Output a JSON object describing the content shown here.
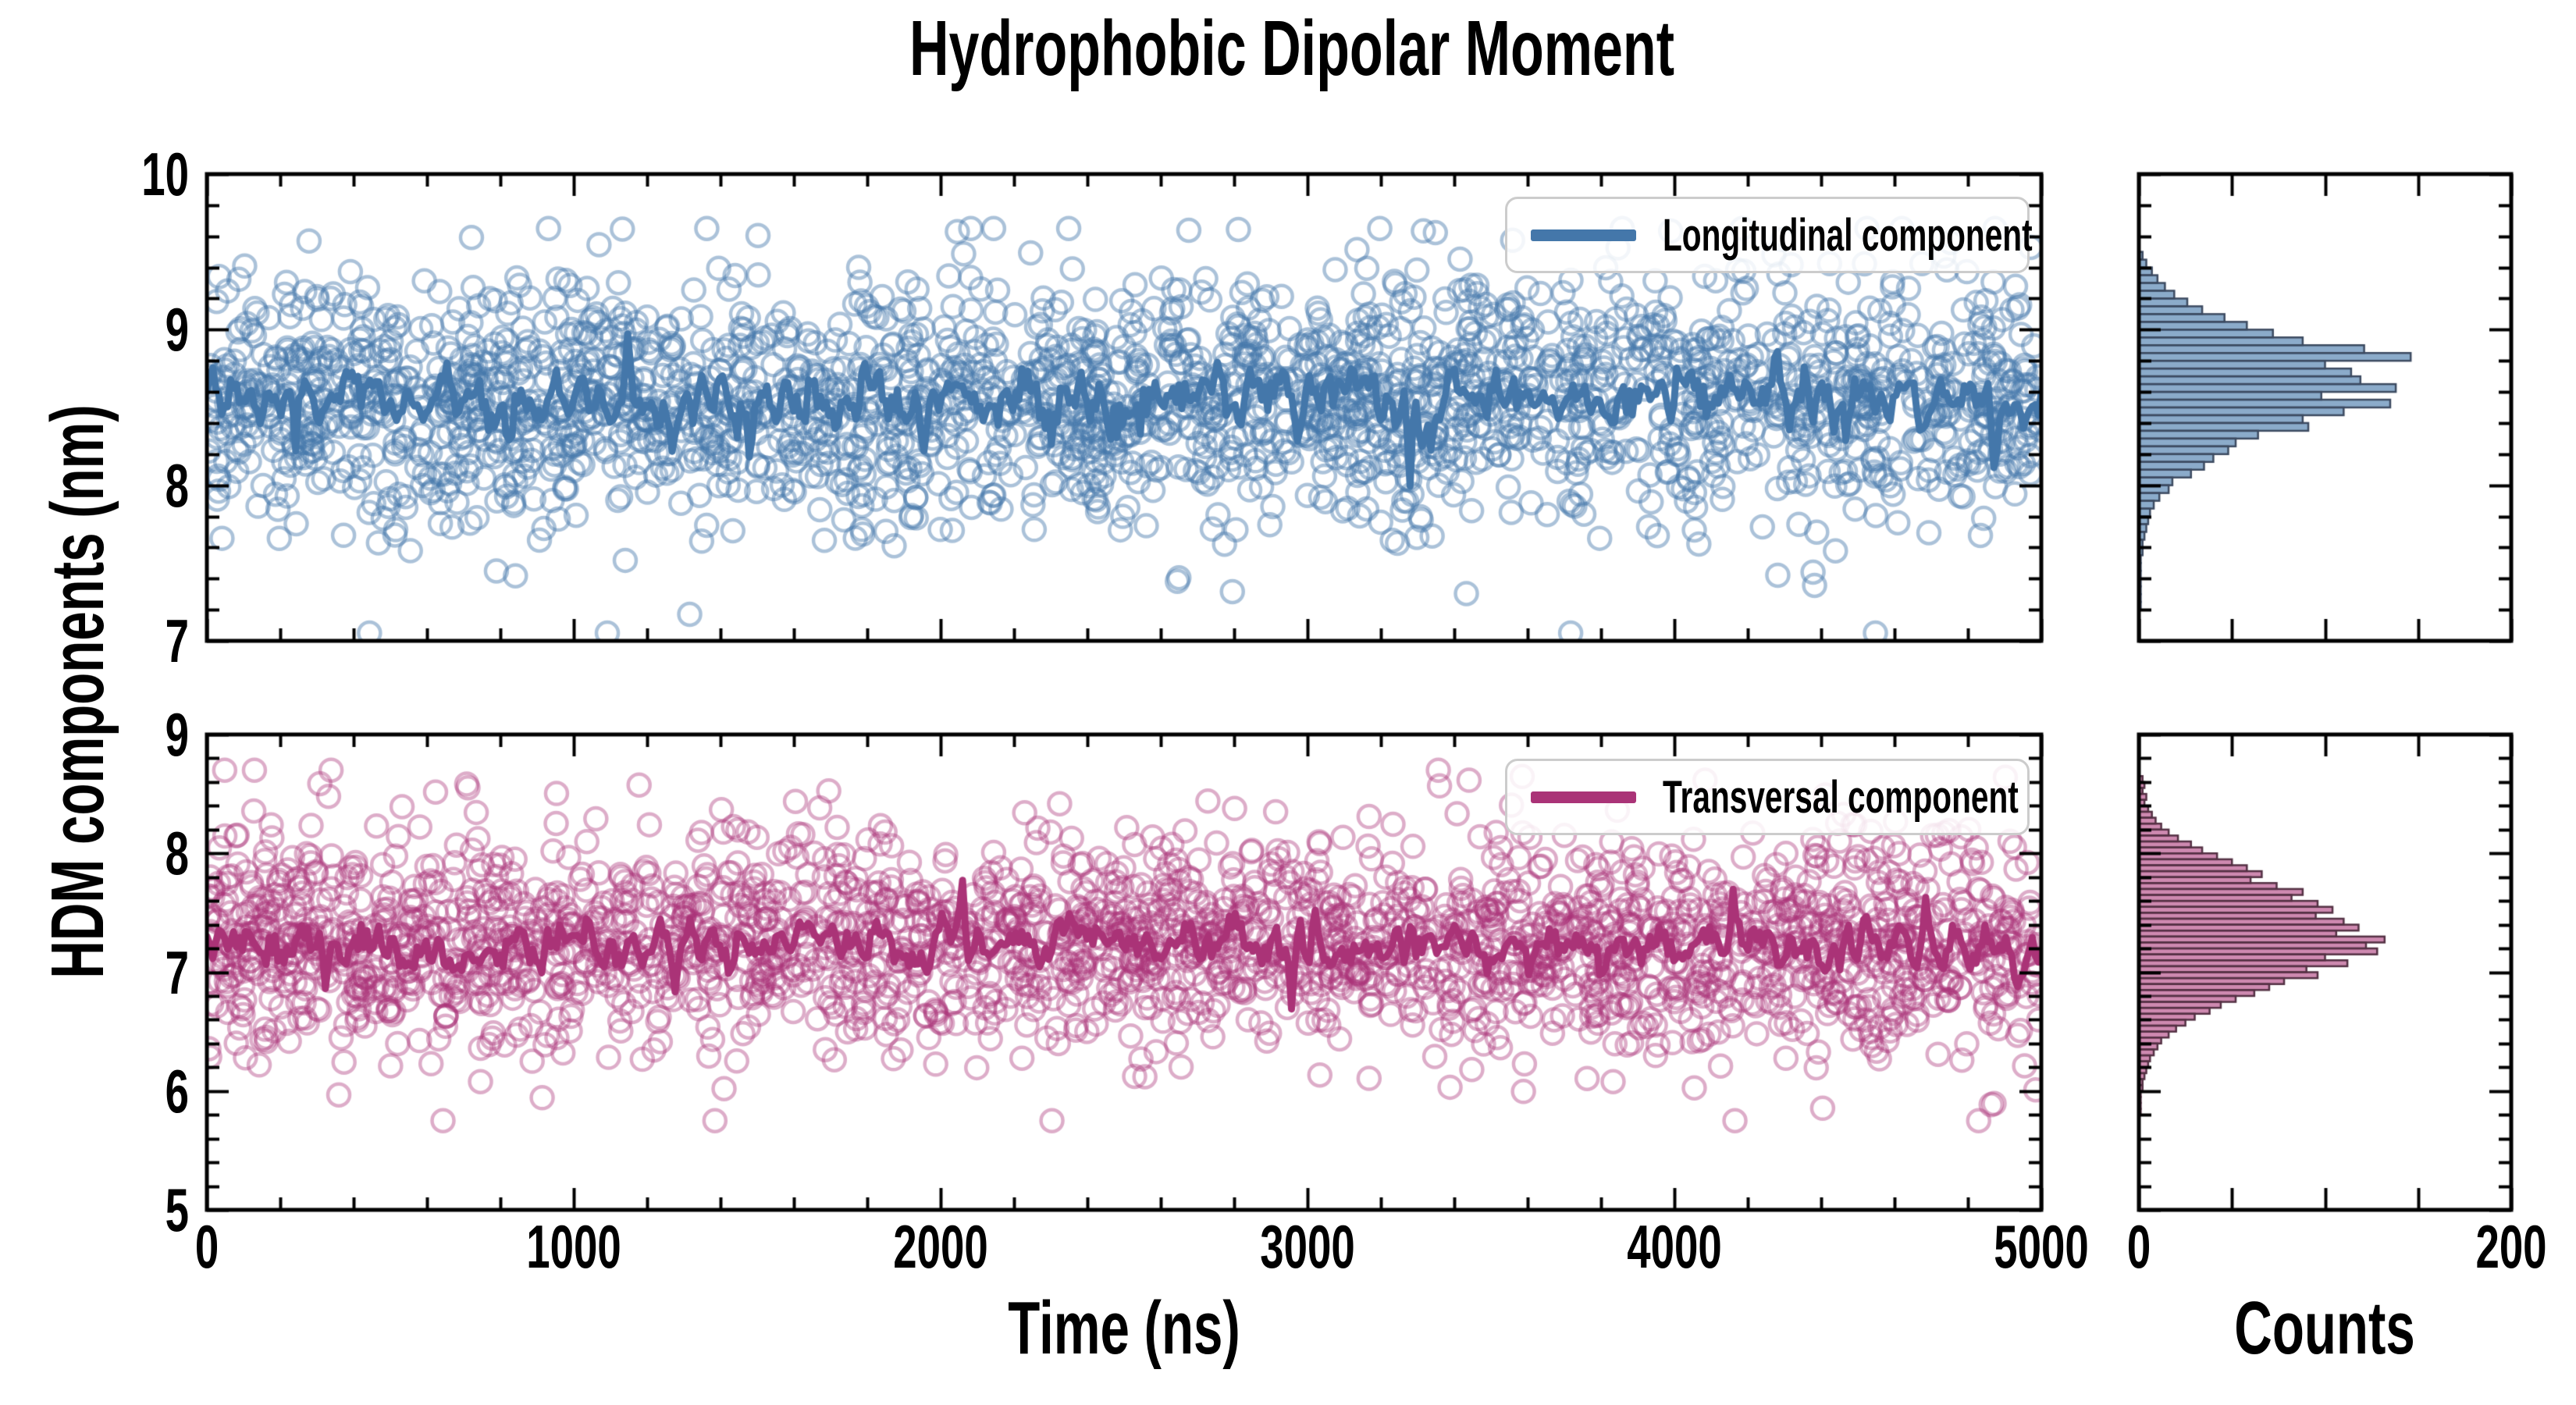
{
  "chart_data": {
    "type": "scatter+line+histogram",
    "title": "Hydrophobic Dipolar Moment",
    "y_label": "HDM components (nm)",
    "x_label_time": "Time (ns)",
    "x_label_counts": "Counts",
    "time_axis": {
      "min": 0,
      "max": 5000,
      "major_step": 1000,
      "minor_step": 200,
      "ticks": [
        {
          "v": 0,
          "label": "0"
        },
        {
          "v": 1000,
          "label": "1000"
        },
        {
          "v": 2000,
          "label": "2000"
        },
        {
          "v": 3000,
          "label": "3000"
        },
        {
          "v": 4000,
          "label": "4000"
        },
        {
          "v": 5000,
          "label": "5000"
        }
      ]
    },
    "counts_axis": {
      "min": 0,
      "max": 200,
      "major_step": 50,
      "ticks": [
        {
          "v": 0,
          "label": "0"
        },
        {
          "v": 200,
          "label": "200"
        }
      ]
    },
    "panels": [
      {
        "id": "longitudinal",
        "legend_label": "Longitudinal component",
        "color": "#4477AA",
        "scatter_alpha": 0.45,
        "hist_fill_alpha": 0.62,
        "hist_edge_color": "#3c4a60",
        "y_axis": {
          "min": 7,
          "max": 10,
          "major_step": 1,
          "minor_step": 0.2,
          "ticks": [
            {
              "v": 10,
              "label": "10"
            },
            {
              "v": 9,
              "label": "9"
            },
            {
              "v": 8,
              "label": "8"
            },
            {
              "v": 7,
              "label": "7"
            }
          ]
        },
        "scatter": {
          "n": 2300,
          "mean": 8.55,
          "sd": 0.38,
          "tail_prob": 0.06,
          "tail_mult": 1.8,
          "clip_lo": 7.05,
          "clip_hi": 9.65,
          "seed": 42
        },
        "line": {
          "n": 620,
          "mean": 8.55,
          "sd": 0.13,
          "width": 9,
          "seed": 1234,
          "spikes": [
            {
              "t": 240,
              "dy": -0.35
            },
            {
              "t": 1150,
              "dy": 0.38
            },
            {
              "t": 1480,
              "dy": -0.3
            },
            {
              "t": 3280,
              "dy": -0.6
            },
            {
              "t": 3340,
              "dy": -0.35
            },
            {
              "t": 4280,
              "dy": 0.3
            },
            {
              "t": 4870,
              "dy": -0.5
            }
          ]
        },
        "histogram": {
          "bin_width": 0.05,
          "top_value": 9.5,
          "counts_desc": [
            2,
            4,
            7,
            10,
            14,
            19,
            26,
            34,
            46,
            58,
            72,
            88,
            121,
            146,
            100,
            114,
            119,
            138,
            98,
            135,
            110,
            88,
            91,
            64,
            52,
            48,
            40,
            35,
            28,
            18,
            16,
            11,
            8,
            6,
            5,
            4,
            3,
            2,
            2,
            1,
            1,
            1,
            1,
            1,
            1,
            1
          ]
        }
      },
      {
        "id": "transversal",
        "legend_label": "Transversal component",
        "color": "#AA3377",
        "scatter_alpha": 0.4,
        "hist_fill_alpha": 0.58,
        "hist_edge_color": "#533043",
        "y_axis": {
          "min": 5,
          "max": 9,
          "major_step": 1,
          "minor_step": 0.2,
          "ticks": [
            {
              "v": 9,
              "label": "9"
            },
            {
              "v": 8,
              "label": "8"
            },
            {
              "v": 7,
              "label": "7"
            },
            {
              "v": 6,
              "label": "6"
            },
            {
              "v": 5,
              "label": "5"
            }
          ]
        },
        "scatter": {
          "n": 2300,
          "mean": 7.25,
          "sd": 0.47,
          "tail_prob": 0.05,
          "tail_mult": 1.7,
          "clip_lo": 5.75,
          "clip_hi": 8.7,
          "seed": 77
        },
        "line": {
          "n": 620,
          "mean": 7.22,
          "sd": 0.14,
          "width": 9,
          "seed": 555,
          "spikes": [
            {
              "t": 320,
              "dy": -0.42
            },
            {
              "t": 1280,
              "dy": -0.35
            },
            {
              "t": 2060,
              "dy": 0.4
            },
            {
              "t": 2960,
              "dy": -0.48
            },
            {
              "t": 4160,
              "dy": 0.45
            },
            {
              "t": 4990,
              "dy": -0.3
            }
          ]
        },
        "histogram": {
          "bin_width": 0.05,
          "top_value": 8.65,
          "counts_desc": [
            2,
            3,
            2,
            4,
            3,
            5,
            7,
            9,
            12,
            16,
            21,
            28,
            34,
            42,
            50,
            58,
            66,
            60,
            74,
            88,
            82,
            96,
            104,
            95,
            110,
            118,
            106,
            132,
            122,
            128,
            100,
            112,
            90,
            96,
            78,
            70,
            62,
            52,
            44,
            38,
            30,
            25,
            20,
            16,
            12,
            10,
            8,
            6,
            5,
            4,
            3,
            2,
            2,
            1,
            1,
            1,
            1
          ]
        }
      }
    ],
    "style": {
      "spine_color": "#000000",
      "tick_color": "#000000",
      "background": "#ffffff",
      "legend_border": "#cccccc",
      "legend_bg": "rgba(255,255,255,0.85)"
    }
  }
}
